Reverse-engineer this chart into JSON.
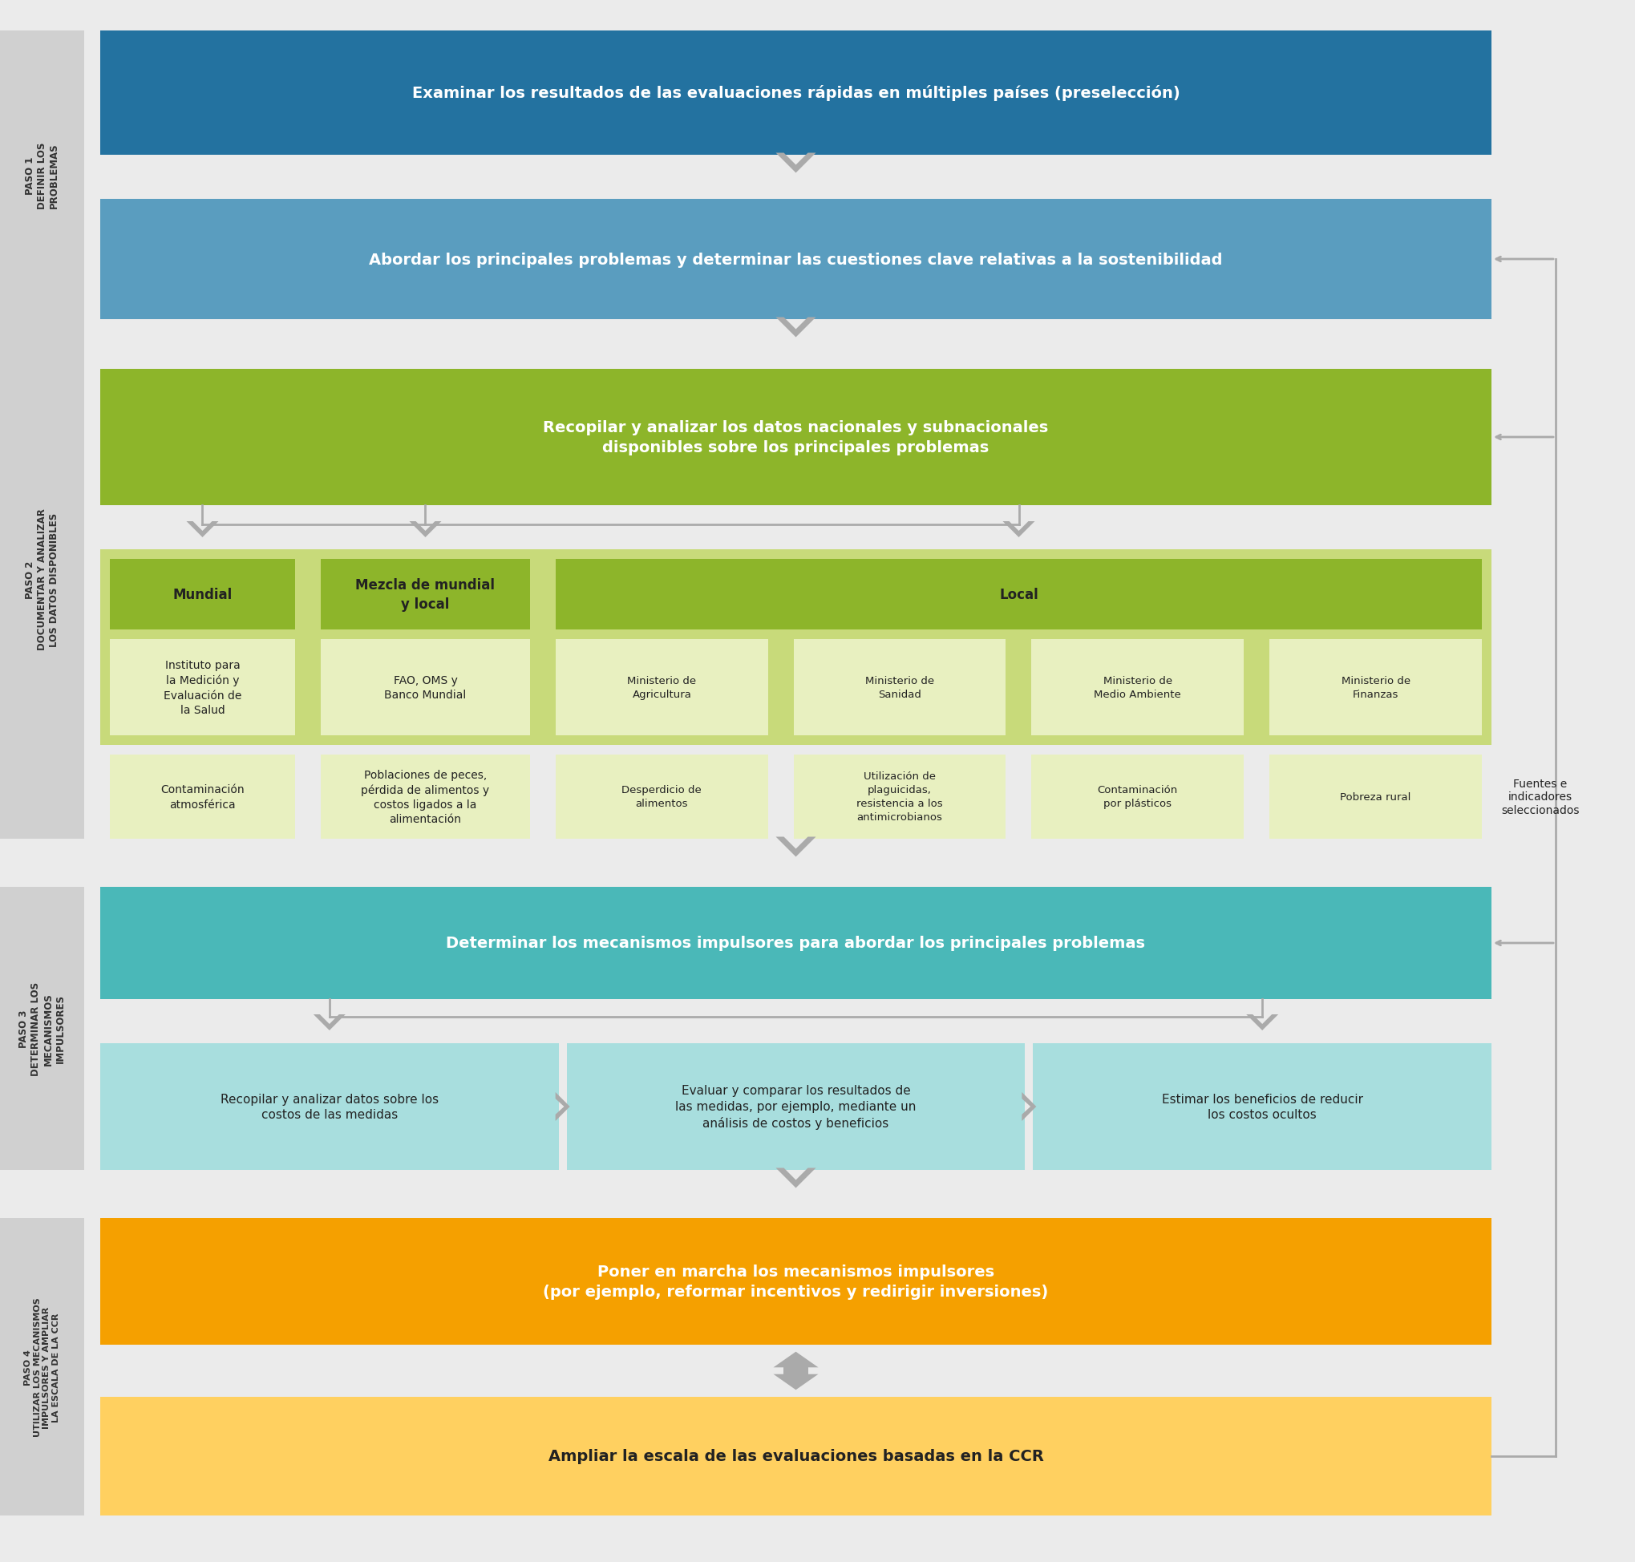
{
  "bg_color": "#ebebeb",
  "sidebar_color": "#d0d0d0",
  "white": "#ffffff",
  "step1_color": "#2372a0",
  "step1_light": "#5a9dbf",
  "step2_color": "#8db52a",
  "step2_light": "#c8da7a",
  "step2_lightest": "#e8f0c0",
  "step3_color": "#4ab8b8",
  "step3_light": "#a8dede",
  "step4_color": "#f5a000",
  "step4_light": "#ffd060",
  "arrow_color": "#aaaaaa",
  "sidebar_text_color": "#333333",
  "dark_text": "#222222",
  "step1_label": "PASO 1\nDEFINIR LOS\nPROBLEMAS",
  "step2_label": "PASO 2\nDOCUMENTAR Y ANALIZAR\nLOS DATOS DISPONIBLES",
  "step3_label": "PASO 3\nDETERMINAR LOS\nMECANISMOS\nIMPULSORES",
  "step4_label": "PASO 4\nUTILIZAR LOS MECANISMOS\nIMPULSORES Y AMPLIAR\nLA ESCALA DE LA CCR",
  "box1_text": "Examinar los resultados de las evaluaciones rápidas en múltiples países (preselección)",
  "box2_text": "Abordar los principales problemas y determinar las cuestiones clave relativas a la sostenibilidad",
  "box3_text": "Recopilar y analizar los datos nacionales y subnacionales\ndisponibles sobre los principales problemas",
  "col_mundial_title": "Mundial",
  "col_mezcla_title": "Mezcla de mundial\ny local",
  "col_local_title": "Local",
  "sub_mundial_source": "Instituto para\nla Medición y\nEvaluación de\nla Salud",
  "sub_mezcla_source": "FAO, OMS y\nBanco Mundial",
  "sub_local1_source": "Ministerio de\nAgricultura",
  "sub_local2_source": "Ministerio de\nSanidad",
  "sub_local3_source": "Ministerio de\nMedio Ambiente",
  "sub_local4_source": "Ministerio de\nFinanzas",
  "sub_mundial_indicator": "Contaminación\natmosférica",
  "sub_mezcla_indicator": "Poblaciones de peces,\npérdida de alimentos y\ncostos ligados a la\nalimentación",
  "sub_local1_indicator": "Desperdicio de\nalimentos",
  "sub_local2_indicator": "Utilización de\nplaguicidas,\nresistencia a los\nantimicrobianos",
  "sub_local3_indicator": "Contaminación\npor plásticos",
  "sub_local4_indicator": "Pobreza rural",
  "fuentes_text": "Fuentes e\nindicadores\nseleccionados",
  "box_step3_main": "Determinar los mecanismos impulsores para abordar los principales problemas",
  "box_step3_sub1": "Recopilar y analizar datos sobre los\ncostos de las medidas",
  "box_step3_sub2": "Evaluar y comparar los resultados de\nlas medidas, por ejemplo, mediante un\nanálisis de costos y beneficios",
  "box_step3_sub3": "Estimar los beneficios de reducir\nlos costos ocultos",
  "box_step4_main": "Poner en marcha los mecanismos impulsores\n(por ejemplo, reformar incentivos y redirigir inversiones)",
  "box_step4_last": "Ampliar la escala de las evaluaciones basadas en la CCR"
}
